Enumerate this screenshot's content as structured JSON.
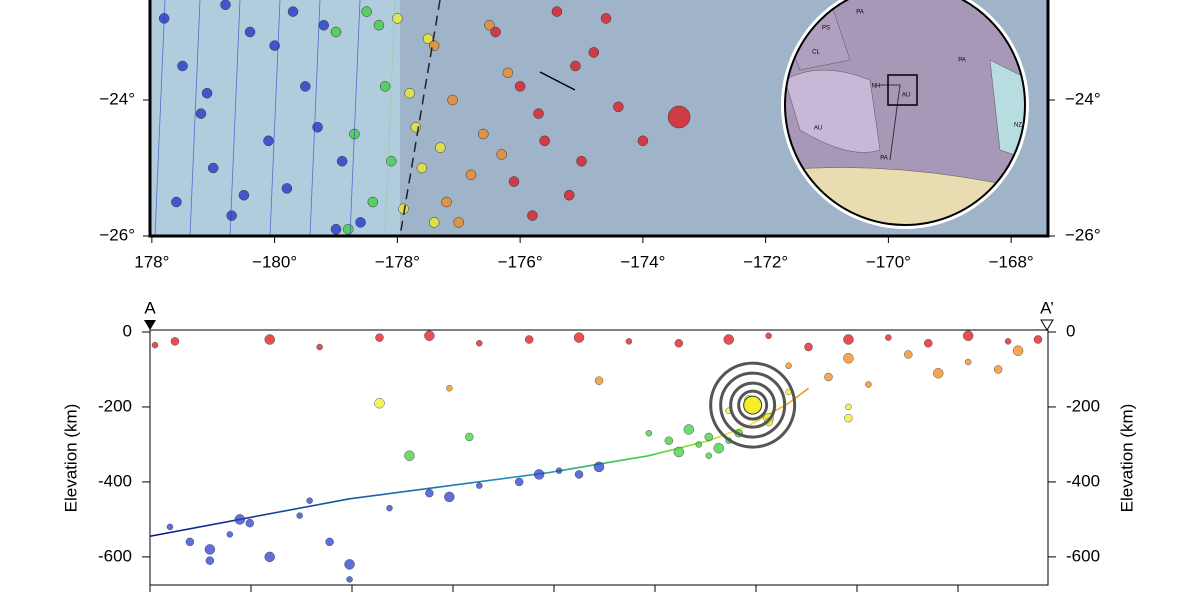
{
  "map": {
    "type": "scatter",
    "xlim": [
      177.97,
      192.6
    ],
    "ylim": [
      -26,
      -22.5
    ],
    "xticks": [
      {
        "value": 178,
        "label": "178°"
      },
      {
        "value": 180,
        "label": "−180°"
      },
      {
        "value": 182,
        "label": "−178°"
      },
      {
        "value": 184,
        "label": "−176°"
      },
      {
        "value": 186,
        "label": "−174°"
      },
      {
        "value": 188,
        "label": "−172°"
      },
      {
        "value": 190,
        "label": "−170°"
      },
      {
        "value": 192,
        "label": "−168°"
      }
    ],
    "yticks": [
      {
        "value": -24,
        "label": "−24°"
      },
      {
        "value": -26,
        "label": "−26°"
      }
    ],
    "series": [
      {
        "color": "#1a2fc8",
        "x": [
          178.2,
          178.5,
          178.8,
          179.0,
          179.3,
          179.6,
          179.9,
          180.2,
          180.5,
          180.8,
          181.1,
          181.4,
          178.4,
          179.2,
          180.0,
          180.7,
          179.5,
          178.9,
          180.3,
          181.0
        ],
        "values": [
          -22.8,
          -23.5,
          -24.2,
          -25.0,
          -25.7,
          -23.0,
          -24.6,
          -25.3,
          -23.8,
          -22.9,
          -24.9,
          -25.8,
          -25.5,
          -22.6,
          -23.2,
          -24.4,
          -25.4,
          -23.9,
          -22.7,
          -25.9
        ]
      },
      {
        "color": "#3ccf3c",
        "x": [
          181.0,
          181.3,
          181.6,
          181.8,
          181.5,
          181.2,
          181.9,
          181.7
        ],
        "values": [
          -23.0,
          -24.5,
          -25.5,
          -23.8,
          -22.7,
          -25.9,
          -24.9,
          -22.9
        ]
      },
      {
        "color": "#f2ee2a",
        "x": [
          182.0,
          182.2,
          182.4,
          182.6,
          182.3,
          182.1,
          182.5,
          182.7
        ],
        "values": [
          -22.8,
          -23.9,
          -25.0,
          -25.8,
          -24.4,
          -25.6,
          -23.1,
          -24.7
        ]
      },
      {
        "color": "#f28a1e",
        "x": [
          182.6,
          182.9,
          183.2,
          183.5,
          183.8,
          183.0,
          183.4,
          182.8,
          183.7
        ],
        "values": [
          -23.2,
          -24.0,
          -25.1,
          -22.9,
          -23.6,
          -25.8,
          -24.5,
          -25.5,
          -24.8
        ]
      },
      {
        "color": "#e0141a",
        "x": [
          183.6,
          184.0,
          184.4,
          184.8,
          185.2,
          185.6,
          184.2,
          184.6,
          185.0,
          183.9,
          184.3,
          185.4,
          184.9,
          186.0,
          186.59
        ],
        "values": [
          -23.0,
          -23.8,
          -24.6,
          -25.4,
          -23.3,
          -24.1,
          -25.7,
          -22.7,
          -24.9,
          -25.2,
          -24.2,
          -22.8,
          -23.5,
          -24.6,
          -24.25
        ]
      }
    ],
    "inset_labels": [
      "PA",
      "PS",
      "CL",
      "AU",
      "NH",
      "PA",
      "NZ",
      "AU",
      "PA"
    ]
  },
  "section": {
    "type": "scatter",
    "start_label": "A",
    "end_label": "A’",
    "ylabel": "Elevation (km)",
    "xlim": [
      0,
      900
    ],
    "ylim": [
      -675,
      0
    ],
    "yticks": [
      0,
      -200,
      -400,
      -600
    ],
    "series": [
      {
        "color": "#e0141a",
        "x": [
          5,
          25,
          120,
          170,
          230,
          280,
          330,
          380,
          430,
          480,
          530,
          580,
          620,
          660,
          700,
          740,
          780,
          820,
          860,
          890
        ],
        "values": [
          -35,
          -25,
          -20,
          -40,
          -15,
          -10,
          -30,
          -20,
          -15,
          -25,
          -30,
          -20,
          -10,
          -40,
          -20,
          -15,
          -30,
          -10,
          -25,
          -20
        ]
      },
      {
        "color": "#f28a1e",
        "x": [
          640,
          680,
          700,
          720,
          760,
          790,
          820,
          850,
          870,
          300,
          450
        ],
        "values": [
          -90,
          -120,
          -70,
          -140,
          -60,
          -110,
          -80,
          -100,
          -50,
          -150,
          -130
        ]
      },
      {
        "color": "#f2ee2a",
        "x": [
          580,
          600,
          620,
          640,
          700,
          230,
          700,
          620
        ],
        "values": [
          -210,
          -180,
          -230,
          -160,
          -230,
          -190,
          -200,
          -240
        ]
      },
      {
        "color": "#3ccf3c",
        "x": [
          500,
          520,
          540,
          550,
          560,
          570,
          580,
          590,
          530,
          560,
          320,
          260
        ],
        "values": [
          -270,
          -290,
          -260,
          -300,
          -280,
          -310,
          -290,
          -270,
          -320,
          -330,
          -280,
          -330
        ]
      },
      {
        "color": "#2a3fd0",
        "x": [
          20,
          40,
          60,
          80,
          100,
          120,
          150,
          180,
          200,
          240,
          280,
          300,
          330,
          370,
          390,
          410,
          430,
          450,
          160,
          60,
          90,
          200
        ],
        "values": [
          -520,
          -560,
          -580,
          -540,
          -510,
          -600,
          -490,
          -560,
          -620,
          -470,
          -430,
          -440,
          -410,
          -400,
          -380,
          -370,
          -380,
          -360,
          -450,
          -610,
          -500,
          -660
        ]
      }
    ],
    "slab": {
      "x": [
        0,
        100,
        200,
        300,
        400,
        500,
        560,
        600,
        640,
        660
      ],
      "values": [
        -545,
        -495,
        -445,
        -410,
        -375,
        -330,
        -290,
        -250,
        -190,
        -150
      ]
    },
    "event": {
      "x": 604,
      "value": -195
    }
  }
}
